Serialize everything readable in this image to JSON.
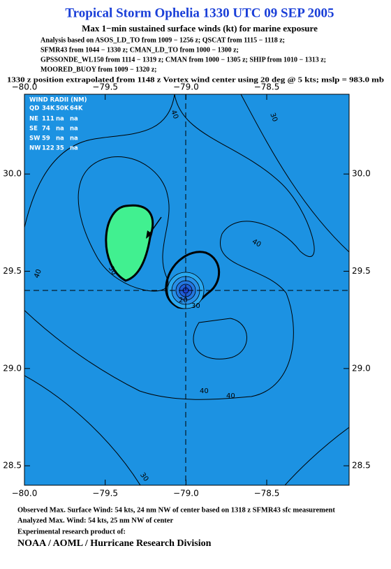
{
  "header": {
    "title": "Tropical Storm Ophelia 1330 UTC 09 SEP 2005",
    "subtitle": "Max 1−min sustained surface winds (kt) for marine exposure",
    "analysis": [
      "Analysis based on  ASOS_LD_TO from 1009 − 1256 z;  QSCAT from 1115 − 1118 z;",
      "SFMR43 from 1044 − 1330 z;  CMAN_LD_TO from 1000 − 1300 z;",
      "GPSSONDE_WL150 from 1114 − 1319 z;  CMAN from 1000 − 1305 z;  SHIP from 1010 − 1313 z;",
      "MOORED_BUOY from 1009 − 1320 z;"
    ],
    "position_note": "1330 z position extrapolated from 1148 z Vortex wind center using 20 deg @ 5 kts; mslp = 983.0 mb"
  },
  "map": {
    "xlim": [
      -80.0,
      -77.99
    ],
    "ylim": [
      28.4,
      30.41
    ],
    "xticks": [
      {
        "value": -80.0,
        "label": "−80.0"
      },
      {
        "value": -79.5,
        "label": "−79.5"
      },
      {
        "value": -79.0,
        "label": "−79.0"
      },
      {
        "value": -78.5,
        "label": "−78.5"
      }
    ],
    "yticks": [
      {
        "value": 28.5,
        "label": "28.5"
      },
      {
        "value": 29.0,
        "label": "29.0"
      },
      {
        "value": 29.5,
        "label": "29.5"
      },
      {
        "value": 30.0,
        "label": "30.0"
      }
    ],
    "contour_labels": [
      "40",
      "50",
      "40",
      "30",
      "40",
      "20",
      "30",
      "40",
      "40",
      "30"
    ],
    "wind_radii": {
      "title": "WIND RADII (NM)",
      "header": [
        "QD",
        "34K",
        "50K",
        "64K"
      ],
      "rows": [
        [
          "NE",
          111,
          "na",
          "na"
        ],
        [
          "SE",
          74,
          "na",
          "na"
        ],
        [
          "SW",
          59,
          "na",
          "na"
        ],
        [
          "NW",
          122,
          35,
          "na"
        ]
      ]
    }
  },
  "footer": {
    "lines": [
      "Observed Max. Surface Wind: 54 kts, 24 nm NW of center based on 1318 z SFMR43 sfc measurement",
      "Analyzed Max. Wind: 54 kts, 25 nm NW of center",
      "Experimental research product of:"
    ],
    "org": "NOAA / AOML / Hurricane Research Division"
  }
}
